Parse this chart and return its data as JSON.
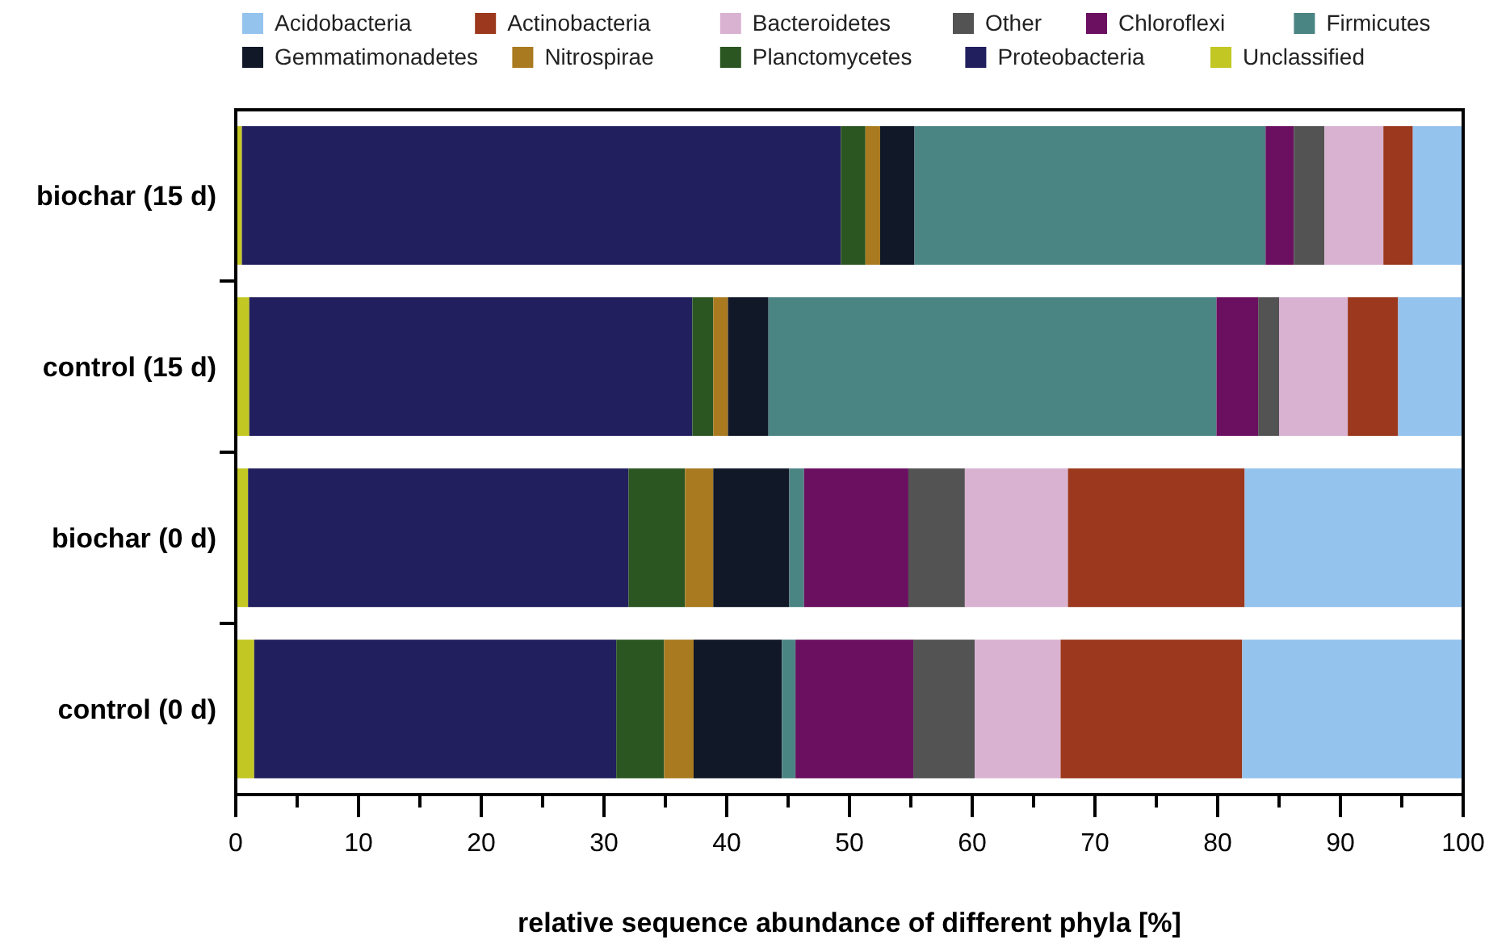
{
  "chart_data": {
    "type": "bar",
    "orientation": "horizontal",
    "stacked": true,
    "xlabel": "relative sequence abundance of different phyla [%]",
    "categories": [
      "biochar (15 d)",
      "control (15 d)",
      "biochar (0 d)",
      "control (0 d)"
    ],
    "xlim": [
      0,
      100
    ],
    "xticks": [
      0,
      {
        "value": 5,
        "label": null
      },
      10,
      {
        "value": 15,
        "label": null
      },
      20,
      {
        "value": 25,
        "label": null
      },
      30,
      {
        "value": 35,
        "label": null
      },
      40,
      {
        "value": 45,
        "label": null
      },
      50,
      {
        "value": 55,
        "label": null
      },
      60,
      {
        "value": 65,
        "label": null
      },
      70,
      {
        "value": 75,
        "label": null
      },
      80,
      {
        "value": 85,
        "label": null
      },
      90,
      {
        "value": 95,
        "label": null
      },
      100
    ],
    "legend": "top",
    "grid": false,
    "series": [
      {
        "name": "Unclassified",
        "color": "#c3c723",
        "values": [
          0.5,
          1.1,
          1.0,
          1.5
        ]
      },
      {
        "name": "Proteobacteria",
        "color": "#221f5f",
        "values": [
          48.8,
          36.1,
          31.0,
          29.5
        ]
      },
      {
        "name": "Planctomycetes",
        "color": "#2b5621",
        "values": [
          2.0,
          1.7,
          4.6,
          3.9
        ]
      },
      {
        "name": "Nitrospirae",
        "color": "#a97a1f",
        "values": [
          1.2,
          1.2,
          2.3,
          2.4
        ]
      },
      {
        "name": "Gemmatimonadetes",
        "color": "#111827",
        "values": [
          2.8,
          3.3,
          6.2,
          7.2
        ]
      },
      {
        "name": "Firmicutes",
        "color": "#4b8583",
        "values": [
          28.6,
          36.5,
          1.2,
          1.1
        ]
      },
      {
        "name": "Chloroflexi",
        "color": "#6b1061",
        "values": [
          2.3,
          3.4,
          8.5,
          9.6
        ]
      },
      {
        "name": "Other",
        "color": "#535353",
        "values": [
          2.5,
          1.7,
          4.6,
          5.0
        ]
      },
      {
        "name": "Bacteroidetes",
        "color": "#d9b2d2",
        "values": [
          4.8,
          5.6,
          8.4,
          7.0
        ]
      },
      {
        "name": "Actinobacteria",
        "color": "#9b381d",
        "values": [
          2.4,
          4.1,
          14.4,
          14.8
        ]
      },
      {
        "name": "Acidobacteria",
        "color": "#94c3ee",
        "values": [
          4.1,
          5.3,
          17.8,
          18.0
        ]
      }
    ]
  }
}
